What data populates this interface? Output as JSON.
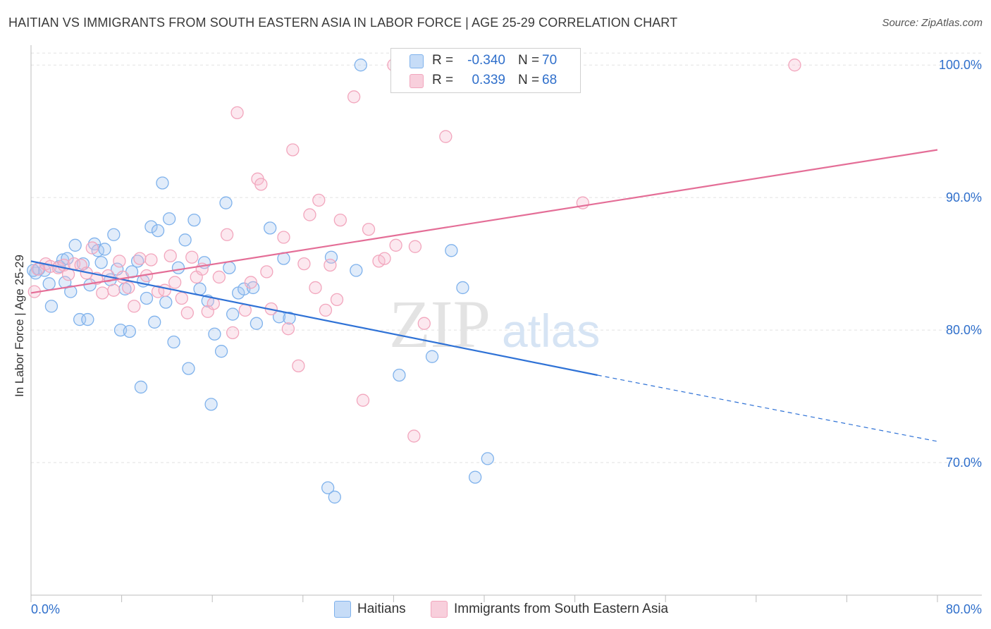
{
  "title": "HAITIAN VS IMMIGRANTS FROM SOUTH EASTERN ASIA IN LABOR FORCE | AGE 25-29 CORRELATION CHART",
  "source": "Source: ZipAtlas.com",
  "watermark": {
    "zip": "ZIP",
    "atlas": "atlas"
  },
  "legend": [
    {
      "r_label": "R =",
      "r_value": "-0.340",
      "n_label": "N =",
      "n_value": "70",
      "color": "#7fb2ec"
    },
    {
      "r_label": "R =",
      "r_value": "0.339",
      "n_label": "N =",
      "n_value": "68",
      "color": "#f2a6bd"
    }
  ],
  "bottom_legend": [
    {
      "label": "Haitians",
      "color": "#7fb2ec"
    },
    {
      "label": "Immigrants from South Eastern Asia",
      "color": "#f2a6bd"
    }
  ],
  "chart_data": {
    "type": "scatter",
    "title": "HAITIAN VS IMMIGRANTS FROM SOUTH EASTERN ASIA IN LABOR FORCE | AGE 25-29 CORRELATION CHART",
    "xlabel": "",
    "ylabel": "In Labor Force | Age 25-29",
    "xlim": [
      0,
      80
    ],
    "ylim": [
      60,
      101.5
    ],
    "x_tick_labels": [
      "0.0%",
      "80.0%"
    ],
    "y_ticks": [
      70,
      80,
      90,
      100
    ],
    "y_tick_labels": [
      "70.0%",
      "80.0%",
      "90.0%",
      "100.0%"
    ],
    "grid": true,
    "legend_placement": "top-center",
    "series": [
      {
        "name": "Haitians",
        "color": "#7fb2ec",
        "line_color": "#2f72d6",
        "r": -0.34,
        "n": 70,
        "trend": {
          "x0": 0,
          "y0": 85.2,
          "x1": 50,
          "y1": 76.6,
          "x_dash_end": 80,
          "y_dash_end": 71.6
        },
        "points": [
          [
            0.4,
            84.3
          ],
          [
            0.7,
            84.6
          ],
          [
            1.2,
            84.5
          ],
          [
            1.6,
            83.5
          ],
          [
            1.8,
            81.8
          ],
          [
            2.5,
            84.8
          ],
          [
            2.8,
            85.3
          ],
          [
            3.0,
            83.6
          ],
          [
            3.2,
            85.4
          ],
          [
            3.5,
            82.9
          ],
          [
            3.9,
            86.4
          ],
          [
            4.3,
            80.8
          ],
          [
            4.6,
            85.0
          ],
          [
            5.0,
            80.8
          ],
          [
            5.2,
            83.4
          ],
          [
            5.6,
            86.5
          ],
          [
            5.9,
            86.0
          ],
          [
            6.2,
            85.1
          ],
          [
            6.5,
            86.1
          ],
          [
            7.0,
            83.8
          ],
          [
            7.3,
            87.2
          ],
          [
            7.6,
            84.6
          ],
          [
            7.9,
            80.0
          ],
          [
            8.3,
            83.1
          ],
          [
            8.7,
            79.9
          ],
          [
            8.9,
            84.4
          ],
          [
            9.4,
            85.2
          ],
          [
            9.7,
            75.7
          ],
          [
            9.9,
            83.7
          ],
          [
            10.2,
            82.4
          ],
          [
            10.6,
            87.8
          ],
          [
            10.9,
            80.6
          ],
          [
            11.2,
            87.5
          ],
          [
            11.6,
            91.1
          ],
          [
            11.9,
            82.1
          ],
          [
            12.2,
            88.4
          ],
          [
            12.6,
            79.1
          ],
          [
            13.0,
            84.7
          ],
          [
            13.6,
            86.8
          ],
          [
            13.9,
            77.1
          ],
          [
            14.4,
            88.3
          ],
          [
            14.9,
            83.1
          ],
          [
            15.3,
            85.1
          ],
          [
            15.6,
            82.2
          ],
          [
            15.9,
            74.4
          ],
          [
            16.2,
            79.7
          ],
          [
            16.8,
            78.4
          ],
          [
            17.2,
            89.6
          ],
          [
            17.5,
            84.7
          ],
          [
            17.8,
            81.2
          ],
          [
            18.3,
            82.8
          ],
          [
            18.8,
            83.1
          ],
          [
            19.6,
            83.2
          ],
          [
            19.9,
            80.5
          ],
          [
            21.1,
            87.7
          ],
          [
            21.9,
            81.0
          ],
          [
            22.3,
            85.4
          ],
          [
            22.8,
            80.9
          ],
          [
            26.2,
            68.1
          ],
          [
            26.5,
            85.5
          ],
          [
            26.8,
            67.4
          ],
          [
            28.7,
            84.5
          ],
          [
            29.1,
            100.0
          ],
          [
            32.5,
            76.6
          ],
          [
            35.4,
            78.0
          ],
          [
            37.1,
            86.0
          ],
          [
            38.1,
            83.2
          ],
          [
            39.2,
            68.9
          ],
          [
            40.3,
            70.3
          ],
          [
            0.2,
            84.5
          ]
        ]
      },
      {
        "name": "Immigrants from South Eastern Asia",
        "color": "#f2a6bd",
        "line_color": "#e46e97",
        "r": 0.339,
        "n": 68,
        "trend": {
          "x0": 0,
          "y0": 82.8,
          "x1": 80,
          "y1": 93.6
        },
        "points": [
          [
            0.3,
            82.9
          ],
          [
            0.6,
            84.6
          ],
          [
            1.3,
            85.0
          ],
          [
            1.7,
            84.8
          ],
          [
            2.4,
            84.7
          ],
          [
            2.9,
            84.9
          ],
          [
            3.3,
            84.2
          ],
          [
            3.8,
            85.0
          ],
          [
            4.4,
            84.9
          ],
          [
            4.9,
            84.3
          ],
          [
            5.4,
            86.2
          ],
          [
            5.8,
            83.9
          ],
          [
            6.3,
            82.8
          ],
          [
            6.8,
            84.1
          ],
          [
            7.3,
            83.0
          ],
          [
            7.8,
            85.2
          ],
          [
            8.1,
            84.0
          ],
          [
            8.6,
            83.2
          ],
          [
            9.1,
            81.8
          ],
          [
            9.6,
            85.4
          ],
          [
            10.2,
            84.1
          ],
          [
            10.6,
            85.3
          ],
          [
            11.2,
            82.9
          ],
          [
            11.8,
            83.0
          ],
          [
            12.3,
            85.6
          ],
          [
            12.7,
            83.6
          ],
          [
            13.3,
            82.4
          ],
          [
            13.8,
            81.3
          ],
          [
            14.2,
            85.5
          ],
          [
            14.6,
            84.0
          ],
          [
            15.1,
            84.6
          ],
          [
            15.6,
            81.4
          ],
          [
            16.1,
            82.0
          ],
          [
            16.6,
            84.0
          ],
          [
            17.3,
            87.2
          ],
          [
            17.8,
            79.8
          ],
          [
            18.2,
            96.4
          ],
          [
            18.9,
            81.5
          ],
          [
            19.4,
            83.6
          ],
          [
            20.0,
            91.4
          ],
          [
            20.3,
            91.0
          ],
          [
            20.8,
            84.4
          ],
          [
            21.2,
            81.6
          ],
          [
            22.3,
            87.0
          ],
          [
            22.7,
            80.1
          ],
          [
            23.1,
            93.6
          ],
          [
            23.6,
            77.3
          ],
          [
            24.1,
            85.0
          ],
          [
            24.6,
            88.7
          ],
          [
            25.1,
            83.2
          ],
          [
            25.4,
            89.8
          ],
          [
            26.0,
            81.5
          ],
          [
            26.4,
            84.9
          ],
          [
            27.0,
            82.3
          ],
          [
            27.3,
            88.3
          ],
          [
            28.5,
            97.6
          ],
          [
            29.3,
            74.7
          ],
          [
            29.8,
            87.6
          ],
          [
            30.7,
            85.2
          ],
          [
            31.2,
            85.4
          ],
          [
            32.0,
            100.0
          ],
          [
            32.2,
            86.4
          ],
          [
            33.8,
            72.0
          ],
          [
            33.9,
            86.3
          ],
          [
            34.7,
            80.5
          ],
          [
            36.6,
            94.6
          ],
          [
            48.7,
            89.6
          ],
          [
            67.4,
            100.0
          ]
        ]
      }
    ]
  }
}
